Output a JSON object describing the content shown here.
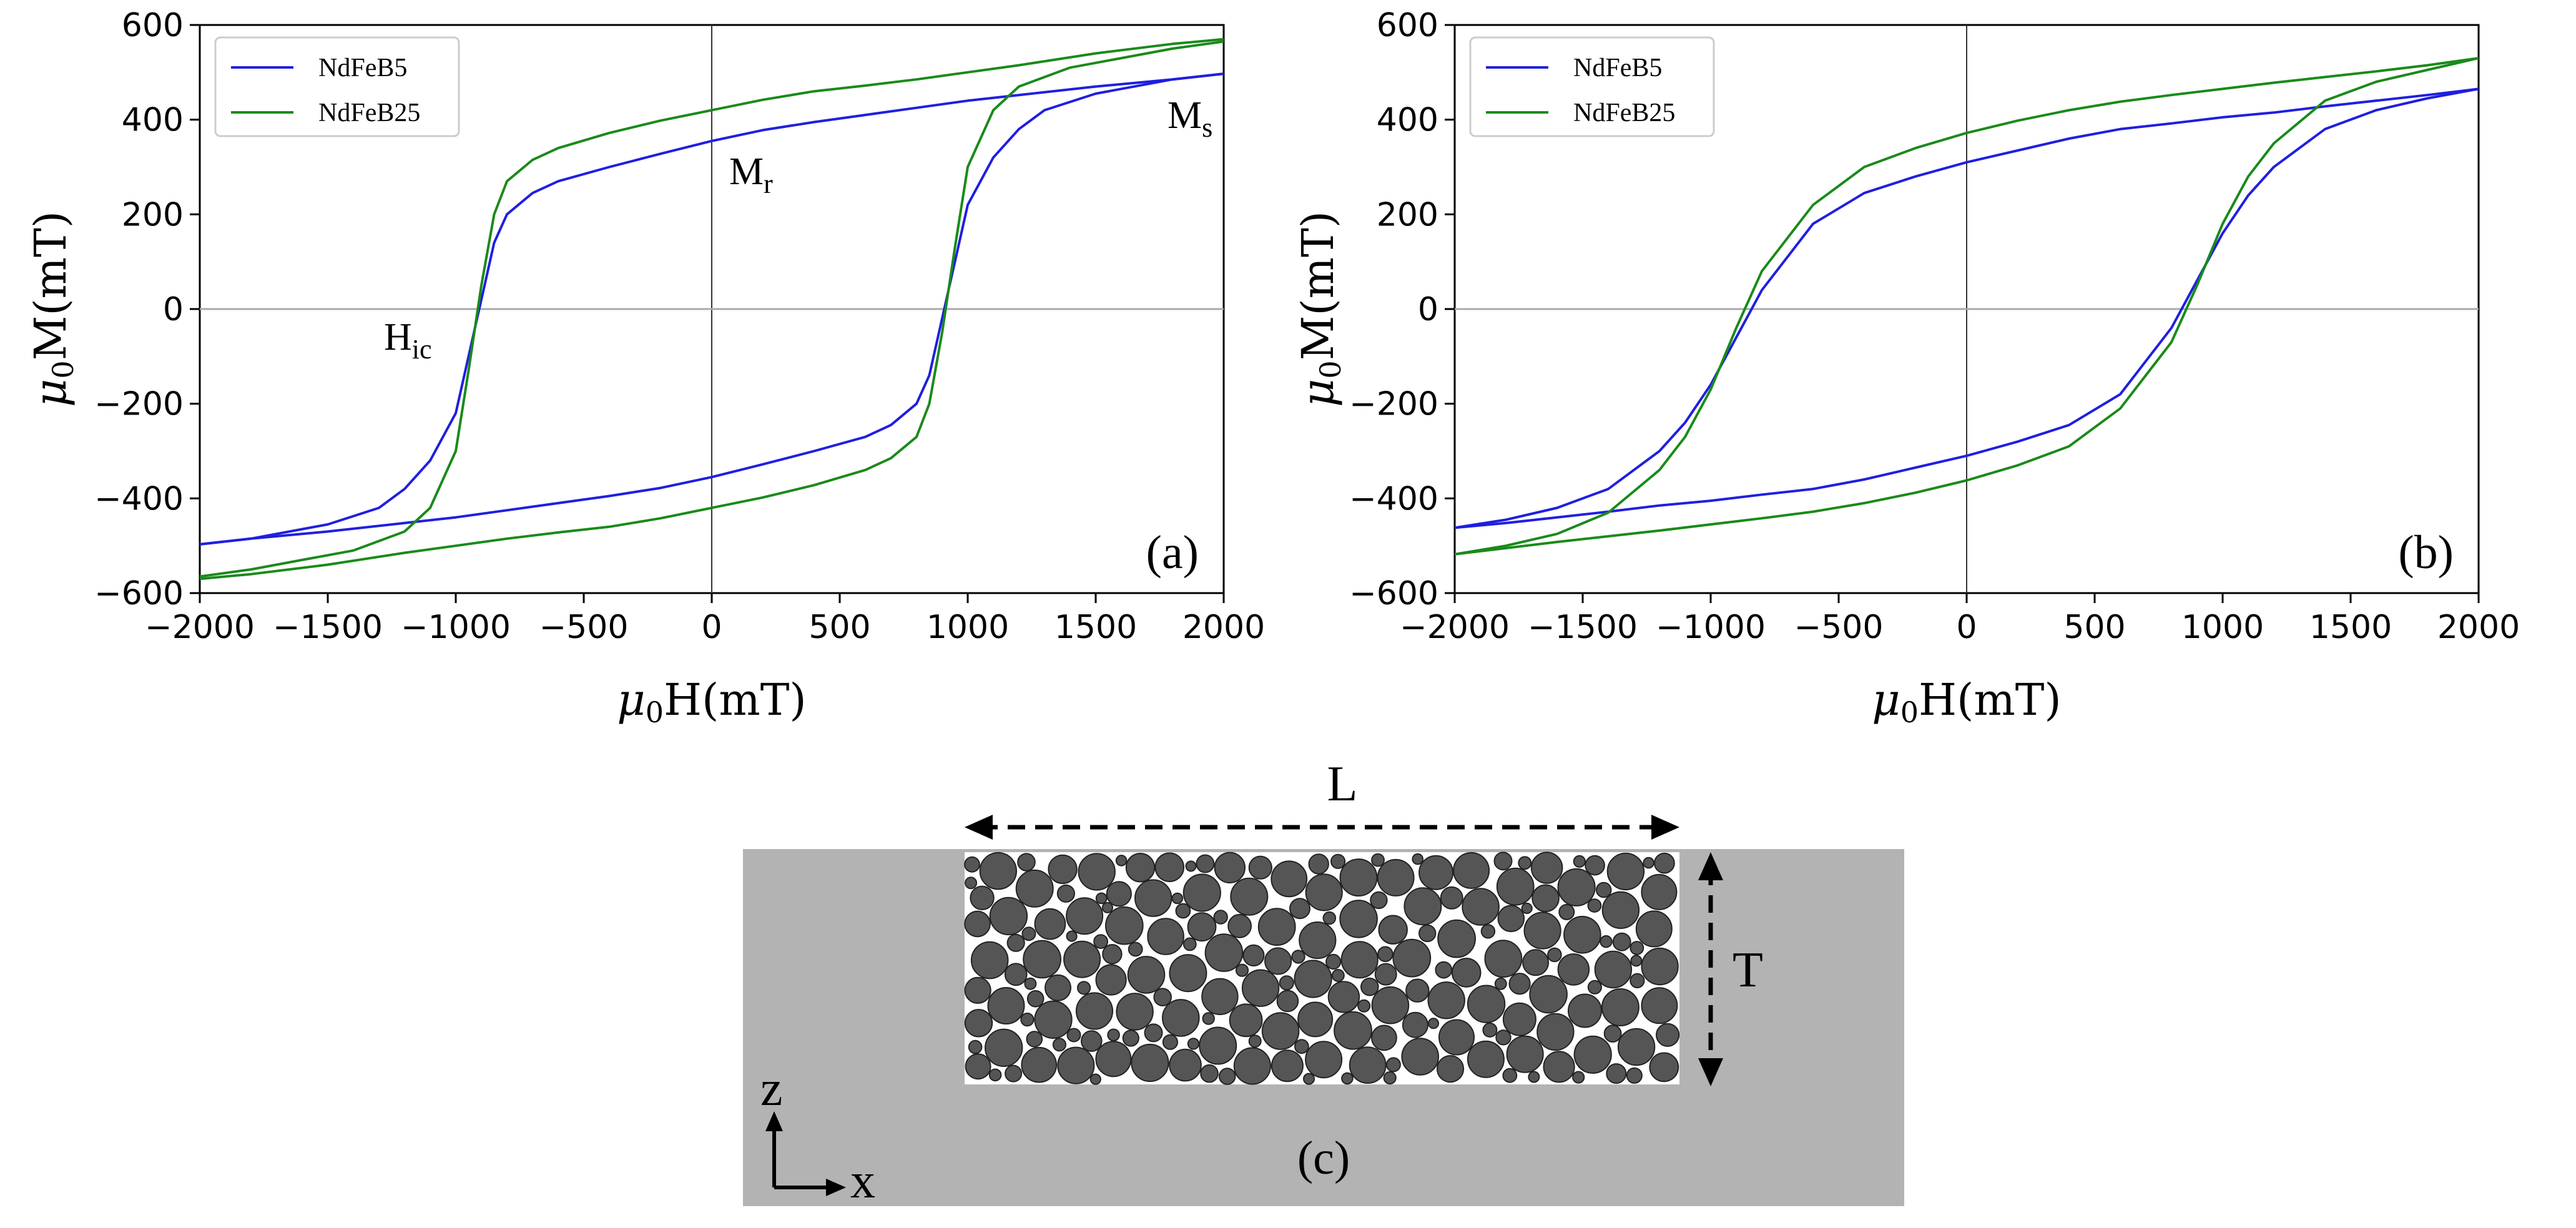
{
  "chart_data": [
    {
      "type": "line",
      "panel_label": "(a)",
      "xlabel_symbol": "μ",
      "xlabel_sub": "0",
      "xlabel_text": "H(mT)",
      "ylabel_symbol": "μ",
      "ylabel_sub": "0",
      "ylabel_text": "M(mT)",
      "xlim": [
        -2000,
        2000
      ],
      "ylim": [
        -600,
        600
      ],
      "xticks": [
        -2000,
        -1500,
        -1000,
        -500,
        0,
        500,
        1000,
        1500,
        2000
      ],
      "xtick_labels": [
        "−2000",
        "−1500",
        "−1000",
        "−500",
        "0",
        "500",
        "1000",
        "1500",
        "2000"
      ],
      "yticks": [
        -600,
        -400,
        -200,
        0,
        200,
        400,
        600
      ],
      "ytick_labels": [
        "−600",
        "−400",
        "−200",
        "0",
        "200",
        "400",
        "600"
      ],
      "legend_position": "top-left",
      "annotations": [
        {
          "text": "M",
          "sub": "s",
          "x": 1790,
          "y": 395
        },
        {
          "text": "M",
          "sub": "r",
          "x": 60,
          "y": 265
        },
        {
          "text": "H",
          "sub": "ic",
          "x": -1270,
          "y": -90
        }
      ],
      "series": [
        {
          "name": "NdFeB5",
          "color": "#1f1fe0",
          "descending": {
            "x": [
              2000,
              1800,
              1500,
              1200,
              1000,
              800,
              600,
              400,
              200,
              0,
              -200,
              -400,
              -600,
              -700,
              -800,
              -850,
              -900,
              -950,
              -1000,
              -1100,
              -1200,
              -1300,
              -1500,
              -1800,
              -2000
            ],
            "y": [
              497,
              485,
              470,
              452,
              440,
              425,
              410,
              395,
              378,
              355,
              328,
              300,
              270,
              245,
              200,
              140,
              20,
              -100,
              -220,
              -320,
              -380,
              -420,
              -455,
              -485,
              -497
            ]
          },
          "ascending": {
            "x": [
              -2000,
              -1800,
              -1500,
              -1200,
              -1000,
              -800,
              -600,
              -400,
              -200,
              0,
              200,
              400,
              600,
              700,
              800,
              850,
              900,
              950,
              1000,
              1100,
              1200,
              1300,
              1500,
              1800,
              2000
            ],
            "y": [
              -497,
              -485,
              -470,
              -452,
              -440,
              -425,
              -410,
              -395,
              -378,
              -355,
              -328,
              -300,
              -270,
              -245,
              -200,
              -140,
              -20,
              100,
              220,
              320,
              380,
              420,
              455,
              485,
              497
            ]
          }
        },
        {
          "name": "NdFeB25",
          "color": "#1a8a1a",
          "descending": {
            "x": [
              2000,
              1800,
              1500,
              1200,
              1000,
              800,
              600,
              400,
              200,
              0,
              -200,
              -400,
              -600,
              -700,
              -800,
              -850,
              -900,
              -950,
              -1000,
              -1100,
              -1200,
              -1400,
              -1600,
              -1800,
              -2000
            ],
            "y": [
              570,
              560,
              540,
              515,
              500,
              485,
              472,
              460,
              442,
              420,
              398,
              372,
              340,
              315,
              270,
              200,
              50,
              -130,
              -300,
              -420,
              -470,
              -510,
              -530,
              -550,
              -565
            ]
          },
          "ascending": {
            "x": [
              -2000,
              -1800,
              -1500,
              -1200,
              -1000,
              -800,
              -600,
              -400,
              -200,
              0,
              200,
              400,
              600,
              700,
              800,
              850,
              900,
              950,
              1000,
              1100,
              1200,
              1400,
              1600,
              1800,
              2000
            ],
            "y": [
              -570,
              -560,
              -540,
              -515,
              -500,
              -485,
              -472,
              -460,
              -442,
              -420,
              -398,
              -372,
              -340,
              -315,
              -270,
              -200,
              -50,
              130,
              300,
              420,
              470,
              510,
              530,
              550,
              565
            ]
          }
        }
      ]
    },
    {
      "type": "line",
      "panel_label": "(b)",
      "xlabel_symbol": "μ",
      "xlabel_sub": "0",
      "xlabel_text": "H(mT)",
      "ylabel_symbol": "μ",
      "ylabel_sub": "0",
      "ylabel_text": "M(mT)",
      "xlim": [
        -2000,
        2000
      ],
      "ylim": [
        -600,
        600
      ],
      "xticks": [
        -2000,
        -1500,
        -1000,
        -500,
        0,
        500,
        1000,
        1500,
        2000
      ],
      "xtick_labels": [
        "−2000",
        "−1500",
        "−1000",
        "−500",
        "0",
        "500",
        "1000",
        "1500",
        "2000"
      ],
      "yticks": [
        -600,
        -400,
        -200,
        0,
        200,
        400,
        600
      ],
      "ytick_labels": [
        "−600",
        "−400",
        "−200",
        "0",
        "200",
        "400",
        "600"
      ],
      "legend_position": "top-left",
      "annotations": [],
      "series": [
        {
          "name": "NdFeB5",
          "color": "#1f1fe0",
          "descending": {
            "x": [
              2000,
              1800,
              1600,
              1400,
              1200,
              1000,
              800,
              600,
              400,
              200,
              0,
              -200,
              -400,
              -600,
              -800,
              -900,
              -1000,
              -1100,
              -1200,
              -1400,
              -1600,
              -1800,
              -2000
            ],
            "y": [
              465,
              452,
              440,
              428,
              415,
              405,
              392,
              380,
              360,
              335,
              310,
              280,
              245,
              180,
              40,
              -60,
              -160,
              -240,
              -300,
              -380,
              -420,
              -445,
              -462
            ]
          },
          "ascending": {
            "x": [
              -2000,
              -1800,
              -1600,
              -1400,
              -1200,
              -1000,
              -800,
              -600,
              -400,
              -200,
              0,
              200,
              400,
              600,
              800,
              900,
              1000,
              1100,
              1200,
              1400,
              1600,
              1800,
              2000
            ],
            "y": [
              -462,
              -452,
              -440,
              -428,
              -415,
              -405,
              -392,
              -380,
              -360,
              -335,
              -310,
              -280,
              -245,
              -180,
              -40,
              60,
              160,
              240,
              300,
              380,
              420,
              445,
              465
            ]
          }
        },
        {
          "name": "NdFeB25",
          "color": "#1a8a1a",
          "descending": {
            "x": [
              2000,
              1800,
              1600,
              1400,
              1200,
              1000,
              800,
              600,
              400,
              200,
              0,
              -200,
              -400,
              -600,
              -800,
              -900,
              -1000,
              -1100,
              -1200,
              -1400,
              -1600,
              -1800,
              -2000
            ],
            "y": [
              530,
              515,
              502,
              490,
              478,
              465,
              452,
              438,
              420,
              398,
              372,
              340,
              300,
              220,
              80,
              -40,
              -170,
              -270,
              -340,
              -430,
              -475,
              -500,
              -518
            ]
          },
          "ascending": {
            "x": [
              -2000,
              -1800,
              -1600,
              -1400,
              -1200,
              -1000,
              -800,
              -600,
              -400,
              -200,
              0,
              200,
              400,
              600,
              800,
              900,
              1000,
              1100,
              1200,
              1400,
              1600,
              1800,
              2000
            ],
            "y": [
              -518,
              -505,
              -492,
              -480,
              -468,
              -455,
              -442,
              -428,
              -410,
              -388,
              -362,
              -330,
              -290,
              -210,
              -70,
              50,
              180,
              280,
              350,
              440,
              480,
              505,
              530
            ]
          }
        }
      ]
    }
  ],
  "diagram": {
    "panel_label": "(c)",
    "length_label": "L",
    "thickness_label": "T",
    "axis_z_label": "z",
    "axis_x_label": "x",
    "background_color": "#b3b3b3",
    "particle_color": "#555555"
  }
}
